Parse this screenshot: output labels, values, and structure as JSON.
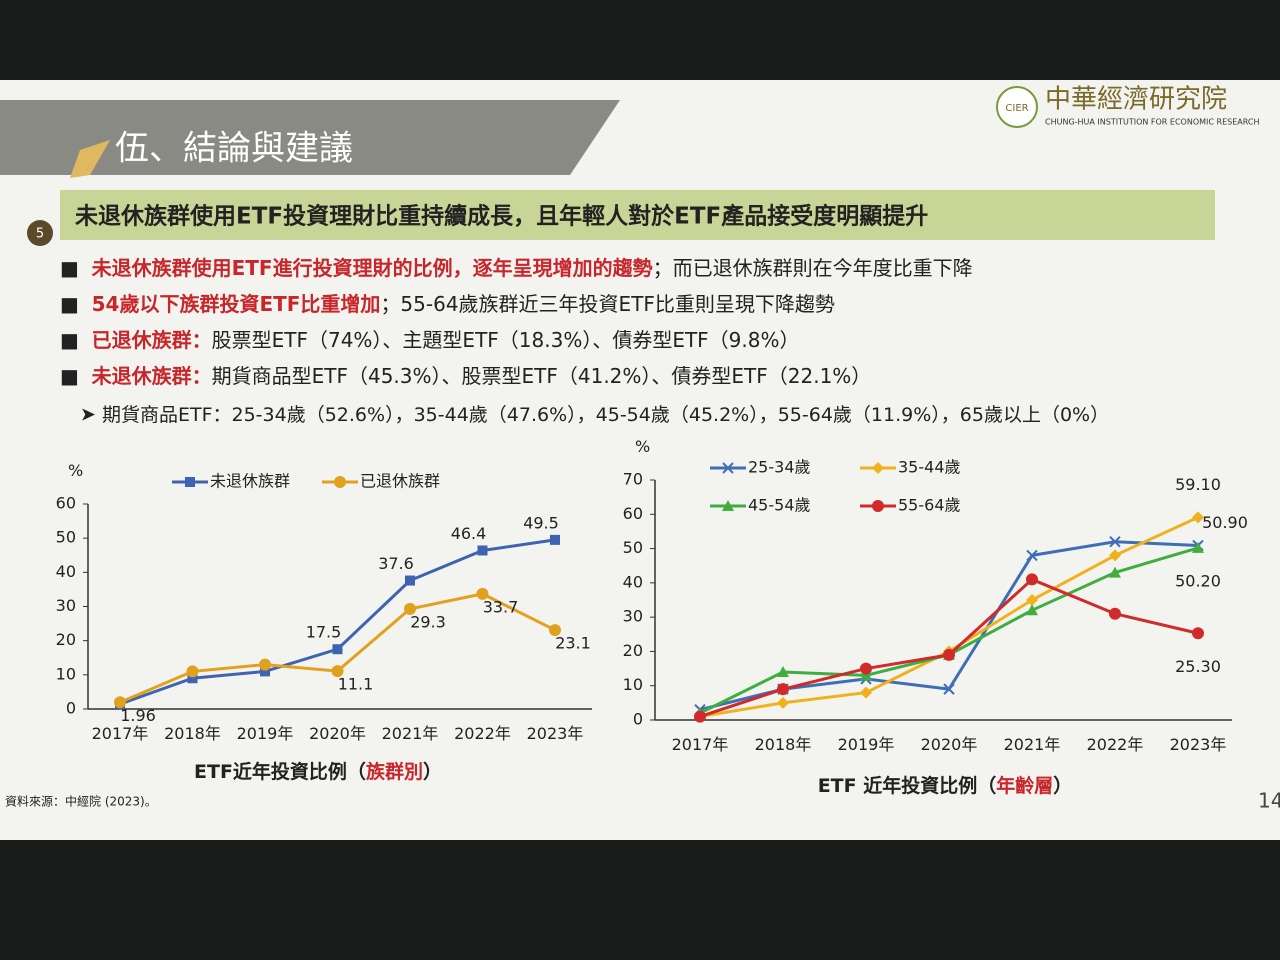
{
  "header": {
    "title": "伍、結論與建議",
    "logo_badge": "CIER",
    "logo_name": "中華經濟研究院",
    "logo_english": "CHUNG-HUA INSTITUTION FOR ECONOMIC RESEARCH"
  },
  "section": {
    "number": "5",
    "banner": "未退休族群使用ETF投資理財比重持續成長，且年輕人對於ETF產品接受度明顯提升"
  },
  "bullets": [
    {
      "highlight": "未退休族群使用ETF進行投資理財的比例，逐年呈現增加的趨勢",
      "text": "；而已退休族群則在今年度比重下降"
    },
    {
      "highlight": "54歲以下族群投資ETF比重增加",
      "text": "；55-64歲族群近三年投資ETF比重則呈現下降趨勢"
    },
    {
      "highlight": "已退休族群：",
      "text": "股票型ETF（74%）、主題型ETF（18.3%）、債券型ETF（9.8%）"
    },
    {
      "highlight": "未退休族群：",
      "text": "期貨商品型ETF（45.3%）、股票型ETF（41.2%）、債券型ETF（22.1%）"
    }
  ],
  "sub_bullet": "期貨商品ETF：25-34歲（52.6%），35-44歲（47.6%），45-54歲（45.2%），55-64歲（11.9%），65歲以上（0%）",
  "source": "資料來源：中經院 (2023)。",
  "page_number": "14",
  "chart_data": [
    {
      "type": "line",
      "title": [
        "ETF近年投資比例（",
        "族群別",
        "）"
      ],
      "y_label": "%",
      "categories": [
        "2017年",
        "2018年",
        "2019年",
        "2020年",
        "2021年",
        "2022年",
        "2023年"
      ],
      "ylim": [
        0,
        60
      ],
      "yticks": [
        0,
        10,
        20,
        30,
        40,
        50,
        60
      ],
      "series": [
        {
          "name": "未退休族群",
          "color": "#3e64b0",
          "marker": "square",
          "values": [
            1.44,
            9,
            11,
            17.5,
            37.6,
            46.4,
            49.5
          ],
          "value_labels": [
            null,
            null,
            null,
            "17.5",
            "37.6",
            "46.4",
            "49.5"
          ]
        },
        {
          "name": "已退休族群",
          "color": "#e0a21e",
          "marker": "circle",
          "values": [
            1.96,
            11,
            13,
            11.1,
            29.3,
            33.7,
            23.1
          ],
          "value_labels": [
            "1.96",
            null,
            null,
            "11.1",
            "29.3",
            "33.7",
            "23.1"
          ]
        }
      ]
    },
    {
      "type": "line",
      "title": [
        "ETF 近年投資比例（",
        "年齡層",
        "）"
      ],
      "y_label": "%",
      "categories": [
        "2017年",
        "2018年",
        "2019年",
        "2020年",
        "2021年",
        "2022年",
        "2023年"
      ],
      "ylim": [
        0,
        70
      ],
      "yticks": [
        0,
        10,
        20,
        30,
        40,
        50,
        60,
        70
      ],
      "series": [
        {
          "name": "25-34歲",
          "color": "#3e6eb5",
          "marker": "x",
          "values": [
            3,
            9,
            12,
            9,
            48,
            52,
            50.9
          ],
          "value_labels": [
            null,
            null,
            null,
            null,
            null,
            null,
            "50.90"
          ]
        },
        {
          "name": "35-44歲",
          "color": "#f0b21c",
          "marker": "diamond",
          "values": [
            1,
            5,
            8,
            20,
            35,
            48,
            59.1
          ],
          "value_labels": [
            null,
            null,
            null,
            null,
            null,
            null,
            "59.10"
          ]
        },
        {
          "name": "45-54歲",
          "color": "#3fae3f",
          "marker": "triangle",
          "values": [
            2,
            14,
            13,
            19,
            32,
            43,
            50.2
          ],
          "value_labels": [
            null,
            null,
            null,
            null,
            null,
            null,
            "50.20"
          ]
        },
        {
          "name": "55-64歲",
          "color": "#d02a2a",
          "marker": "circle",
          "values": [
            1,
            9,
            15,
            19,
            41,
            31,
            25.3
          ],
          "value_labels": [
            null,
            null,
            null,
            null,
            null,
            null,
            "25.30"
          ]
        }
      ]
    }
  ]
}
